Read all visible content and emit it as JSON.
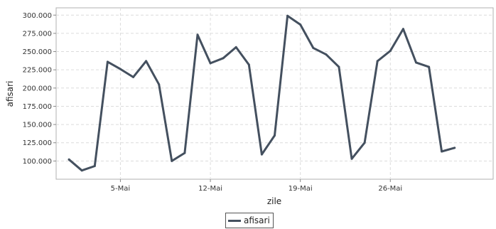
{
  "chart_data": {
    "type": "line",
    "title": "",
    "xlabel": "zile",
    "ylabel": "afisari",
    "ylim": [
      75000,
      310000
    ],
    "y_ticks": [
      100000,
      125000,
      150000,
      175000,
      200000,
      225000,
      250000,
      275000,
      300000
    ],
    "y_tick_labels": [
      "100.000",
      "125.000",
      "150.000",
      "175.000",
      "200.000",
      "225.000",
      "250.000",
      "275.000",
      "300.000"
    ],
    "x_range": [
      "2013-04-30",
      "2013-06-03"
    ],
    "x_ticks": [
      "2013-05-05",
      "2013-05-12",
      "2013-05-19",
      "2013-05-26"
    ],
    "x_tick_labels": [
      "5-Mai",
      "12-Mai",
      "19-Mai",
      "26-Mai"
    ],
    "grid": true,
    "legend": "bottom-center",
    "series": [
      {
        "name": "afisari",
        "color": "#44505f",
        "points": [
          {
            "x": "2013-05-01",
            "y": 102000
          },
          {
            "x": "2013-05-02",
            "y": 87000
          },
          {
            "x": "2013-05-03",
            "y": 93000
          },
          {
            "x": "2013-05-04",
            "y": 236000
          },
          {
            "x": "2013-05-05",
            "y": 226000
          },
          {
            "x": "2013-05-06",
            "y": 215000
          },
          {
            "x": "2013-05-07",
            "y": 237000
          },
          {
            "x": "2013-05-08",
            "y": 205000
          },
          {
            "x": "2013-05-09",
            "y": 100000
          },
          {
            "x": "2013-05-10",
            "y": 111000
          },
          {
            "x": "2013-05-11",
            "y": 273000
          },
          {
            "x": "2013-05-12",
            "y": 234000
          },
          {
            "x": "2013-05-13",
            "y": 241000
          },
          {
            "x": "2013-05-14",
            "y": 256000
          },
          {
            "x": "2013-05-15",
            "y": 232000
          },
          {
            "x": "2013-05-16",
            "y": 109000
          },
          {
            "x": "2013-05-17",
            "y": 135000
          },
          {
            "x": "2013-05-18",
            "y": 299000
          },
          {
            "x": "2013-05-19",
            "y": 287000
          },
          {
            "x": "2013-05-20",
            "y": 255000
          },
          {
            "x": "2013-05-21",
            "y": 246000
          },
          {
            "x": "2013-05-22",
            "y": 229000
          },
          {
            "x": "2013-05-23",
            "y": 103000
          },
          {
            "x": "2013-05-24",
            "y": 125000
          },
          {
            "x": "2013-05-25",
            "y": 237000
          },
          {
            "x": "2013-05-26",
            "y": 251000
          },
          {
            "x": "2013-05-27",
            "y": 281000
          },
          {
            "x": "2013-05-28",
            "y": 235000
          },
          {
            "x": "2013-05-29",
            "y": 229000
          },
          {
            "x": "2013-05-30",
            "y": 113000
          },
          {
            "x": "2013-05-31",
            "y": 118000
          }
        ]
      }
    ]
  }
}
